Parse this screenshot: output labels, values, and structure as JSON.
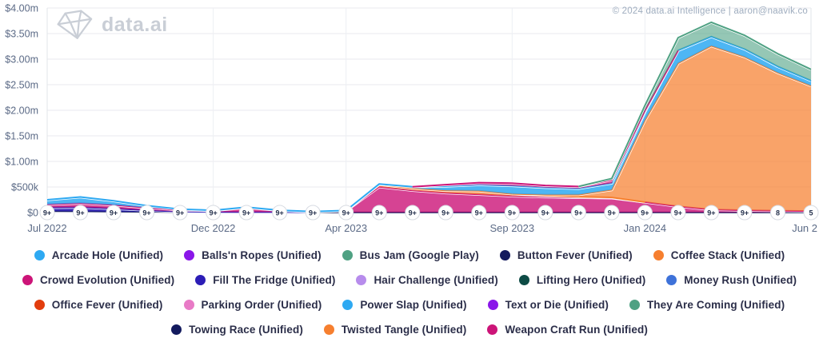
{
  "watermark": {
    "label": "data.ai",
    "icon": "gem-icon",
    "color": "#c9ced6"
  },
  "attribution": {
    "text": "© 2024 data.ai Intelligence | aaron@naavik.co",
    "color": "#9fadbf"
  },
  "chart_data": {
    "type": "area",
    "stacked": true,
    "title": "",
    "xlabel": "",
    "ylabel": "",
    "unit": "USD, values estimated from pixels, in thousands ($k)",
    "ylim_k": [
      0,
      4000
    ],
    "grid": {
      "horizontal": true,
      "vertical_at_labeled_ticks": true,
      "legend_position": "bottom"
    },
    "x": [
      "Jul 2022",
      "Aug 2022",
      "Sep 2022",
      "Oct 2022",
      "Nov 2022",
      "Dec 2022",
      "Jan 2023",
      "Feb 2023",
      "Mar 2023",
      "Apr 2023",
      "May 2023",
      "Jun 2023",
      "Jul 2023",
      "Aug 2023",
      "Sep 2023",
      "Oct 2023",
      "Nov 2023",
      "Dec 2023",
      "Jan 2024",
      "Feb 2024",
      "Mar 2024",
      "Apr 2024",
      "May 2024",
      "Jun 2024"
    ],
    "x_ticks": [
      {
        "index": 0,
        "label": "Jul 2022"
      },
      {
        "index": 5,
        "label": "Dec 2022"
      },
      {
        "index": 9,
        "label": "Apr 2023"
      },
      {
        "index": 14,
        "label": "Sep 2023"
      },
      {
        "index": 18,
        "label": "Jan 2024"
      },
      {
        "index": 23,
        "label": "Jun 2"
      }
    ],
    "y_ticks": [
      {
        "label": "$0",
        "value_k": 0
      },
      {
        "label": "$500k",
        "value_k": 500
      },
      {
        "label": "$1.00m",
        "value_k": 1000
      },
      {
        "label": "$1.50m",
        "value_k": 1500
      },
      {
        "label": "$2.00m",
        "value_k": 2000
      },
      {
        "label": "$2.50m",
        "value_k": 2500
      },
      {
        "label": "$3.00m",
        "value_k": 3000
      },
      {
        "label": "$3.50m",
        "value_k": 3500
      },
      {
        "label": "$4.00m",
        "value_k": 4000
      }
    ],
    "rating_markers": {
      "labels": [
        "9+",
        "9+",
        "9+",
        "9+",
        "9+",
        "9+",
        "9+",
        "9+",
        "9+",
        "9+",
        "9+",
        "9+",
        "9+",
        "9+",
        "9+",
        "9+",
        "9+",
        "9+",
        "9+",
        "9+",
        "9+",
        "9+",
        "8",
        "5"
      ]
    },
    "series_order": "bottom_to_top_stacking",
    "series": [
      {
        "name": "Button Fever (Unified)",
        "color": "#131A5E",
        "fill_opacity": 0.9,
        "values_k": [
          30,
          25,
          20,
          15,
          10,
          8,
          5,
          5,
          5,
          5,
          5,
          5,
          5,
          5,
          5,
          5,
          5,
          5,
          5,
          5,
          5,
          5,
          5,
          5
        ]
      },
      {
        "name": "Fill The Fridge (Unified)",
        "color": "#2C1DB6",
        "fill_opacity": 0.85,
        "values_k": [
          70,
          80,
          60,
          30,
          10,
          5,
          5,
          5,
          0,
          0,
          0,
          0,
          0,
          0,
          0,
          0,
          0,
          0,
          0,
          0,
          0,
          0,
          0,
          0
        ]
      },
      {
        "name": "Crowd Evolution (Unified)",
        "color": "#CC1478",
        "fill_opacity": 0.8,
        "values_k": [
          60,
          80,
          70,
          50,
          30,
          25,
          90,
          30,
          10,
          30,
          500,
          430,
          380,
          350,
          320,
          300,
          290,
          280,
          200,
          115,
          55,
          40,
          30,
          25
        ]
      },
      {
        "name": "Coffee Stack (Unified)",
        "color": "#F67F2F",
        "fill_opacity": 0.75,
        "values_k": [
          0,
          0,
          0,
          0,
          0,
          0,
          0,
          0,
          0,
          0,
          45,
          40,
          50,
          70,
          40,
          25,
          15,
          10,
          0,
          0,
          0,
          0,
          0,
          0
        ]
      },
      {
        "name": "Twisted Tangle (Unified)",
        "color": "#F67F2F",
        "fill_opacity": 0.72,
        "values_k": [
          0,
          0,
          0,
          0,
          0,
          0,
          0,
          0,
          0,
          0,
          0,
          0,
          0,
          0,
          0,
          20,
          40,
          150,
          1600,
          2800,
          3200,
          3000,
          2700,
          2450
        ]
      },
      {
        "name": "Arcade Hole (Unified)",
        "color": "#2EA9F2",
        "fill_opacity": 0.85,
        "values_k": [
          90,
          120,
          80,
          40,
          15,
          5,
          5,
          5,
          5,
          5,
          10,
          30,
          80,
          120,
          160,
          140,
          120,
          130,
          160,
          250,
          180,
          150,
          120,
          100
        ]
      },
      {
        "name": "Weapon Craft Run (Unified)",
        "color": "#CC1478",
        "fill_opacity": 0.85,
        "values_k": [
          0,
          0,
          0,
          0,
          0,
          0,
          0,
          0,
          0,
          0,
          0,
          0,
          30,
          40,
          50,
          40,
          40,
          60,
          30,
          0,
          0,
          0,
          0,
          0
        ]
      },
      {
        "name": "Bus Jam (Google Play)",
        "color": "#4FA183",
        "fill_opacity": 0.6,
        "values_k": [
          0,
          0,
          0,
          0,
          0,
          0,
          0,
          0,
          0,
          0,
          0,
          0,
          0,
          0,
          0,
          0,
          0,
          30,
          100,
          250,
          280,
          270,
          250,
          220
        ]
      },
      {
        "name": "Balls'n Ropes (Unified)",
        "color": "#8A16E9",
        "fill_opacity": 0.85,
        "values_k": [
          0,
          0,
          0,
          0,
          0,
          0,
          0,
          0,
          0,
          0,
          0,
          0,
          0,
          0,
          0,
          0,
          0,
          0,
          0,
          0,
          0,
          0,
          0,
          0
        ]
      },
      {
        "name": "Hair Challenge (Unified)",
        "color": "#B78CEC",
        "fill_opacity": 0.85,
        "values_k": [
          0,
          0,
          0,
          0,
          0,
          0,
          0,
          0,
          0,
          0,
          0,
          0,
          0,
          0,
          0,
          0,
          0,
          0,
          0,
          0,
          0,
          0,
          0,
          0
        ]
      },
      {
        "name": "Lifting Hero (Unified)",
        "color": "#0D4B45",
        "fill_opacity": 0.85,
        "values_k": [
          0,
          0,
          0,
          0,
          0,
          0,
          0,
          0,
          0,
          0,
          0,
          0,
          0,
          0,
          0,
          0,
          0,
          0,
          0,
          0,
          0,
          0,
          0,
          0
        ]
      },
      {
        "name": "Money Rush (Unified)",
        "color": "#3E72D9",
        "fill_opacity": 0.85,
        "values_k": [
          0,
          0,
          0,
          0,
          0,
          0,
          0,
          0,
          0,
          0,
          0,
          0,
          0,
          0,
          0,
          0,
          0,
          0,
          0,
          0,
          0,
          0,
          0,
          0
        ]
      },
      {
        "name": "Office Fever (Unified)",
        "color": "#E23D0D",
        "fill_opacity": 0.85,
        "values_k": [
          0,
          0,
          0,
          0,
          0,
          0,
          0,
          0,
          0,
          0,
          0,
          0,
          0,
          0,
          0,
          0,
          0,
          0,
          0,
          0,
          0,
          0,
          0,
          0
        ]
      },
      {
        "name": "Parking Order (Unified)",
        "color": "#E87AC6",
        "fill_opacity": 0.85,
        "values_k": [
          0,
          0,
          0,
          0,
          0,
          0,
          0,
          0,
          0,
          0,
          0,
          0,
          0,
          0,
          0,
          0,
          0,
          0,
          0,
          0,
          0,
          0,
          0,
          0
        ]
      },
      {
        "name": "Power Slap (Unified)",
        "color": "#2EA9F2",
        "fill_opacity": 0.85,
        "values_k": [
          0,
          0,
          0,
          0,
          0,
          0,
          0,
          0,
          0,
          0,
          0,
          0,
          0,
          0,
          0,
          0,
          0,
          0,
          0,
          0,
          0,
          0,
          0,
          0
        ]
      },
      {
        "name": "Text or Die (Unified)",
        "color": "#8A16E9",
        "fill_opacity": 0.85,
        "values_k": [
          0,
          0,
          0,
          0,
          0,
          0,
          0,
          0,
          0,
          0,
          0,
          0,
          0,
          0,
          0,
          0,
          0,
          0,
          0,
          0,
          0,
          0,
          0,
          0
        ]
      },
      {
        "name": "They Are Coming (Unified)",
        "color": "#4FA183",
        "fill_opacity": 0.85,
        "values_k": [
          0,
          0,
          0,
          0,
          0,
          0,
          0,
          0,
          0,
          0,
          0,
          0,
          0,
          0,
          0,
          0,
          0,
          0,
          0,
          0,
          0,
          0,
          0,
          0
        ]
      },
      {
        "name": "Towing Race (Unified)",
        "color": "#131A5E",
        "fill_opacity": 0.85,
        "values_k": [
          0,
          0,
          0,
          0,
          0,
          0,
          0,
          0,
          0,
          0,
          0,
          0,
          0,
          0,
          0,
          0,
          0,
          0,
          0,
          0,
          0,
          0,
          0,
          0
        ]
      }
    ]
  },
  "legend": {
    "items": [
      {
        "label": "Arcade Hole (Unified)",
        "color": "#2EA9F2"
      },
      {
        "label": "Balls'n Ropes (Unified)",
        "color": "#8A16E9"
      },
      {
        "label": "Bus Jam (Google Play)",
        "color": "#4FA183"
      },
      {
        "label": "Button Fever (Unified)",
        "color": "#131A5E"
      },
      {
        "label": "Coffee Stack (Unified)",
        "color": "#F67F2F"
      },
      {
        "label": "Crowd Evolution (Unified)",
        "color": "#CC1478"
      },
      {
        "label": "Fill The Fridge (Unified)",
        "color": "#2C1DB6"
      },
      {
        "label": "Hair Challenge (Unified)",
        "color": "#B78CEC"
      },
      {
        "label": "Lifting Hero (Unified)",
        "color": "#0D4B45"
      },
      {
        "label": "Money Rush (Unified)",
        "color": "#3E72D9"
      },
      {
        "label": "Office Fever (Unified)",
        "color": "#E23D0D"
      },
      {
        "label": "Parking Order (Unified)",
        "color": "#E87AC6"
      },
      {
        "label": "Power Slap (Unified)",
        "color": "#2EA9F2"
      },
      {
        "label": "Text or Die (Unified)",
        "color": "#8A16E9"
      },
      {
        "label": "They Are Coming (Unified)",
        "color": "#4FA183"
      },
      {
        "label": "Towing Race (Unified)",
        "color": "#131A5E"
      },
      {
        "label": "Twisted Tangle (Unified)",
        "color": "#F67F2F"
      },
      {
        "label": "Weapon Craft Run (Unified)",
        "color": "#CC1478"
      }
    ]
  }
}
